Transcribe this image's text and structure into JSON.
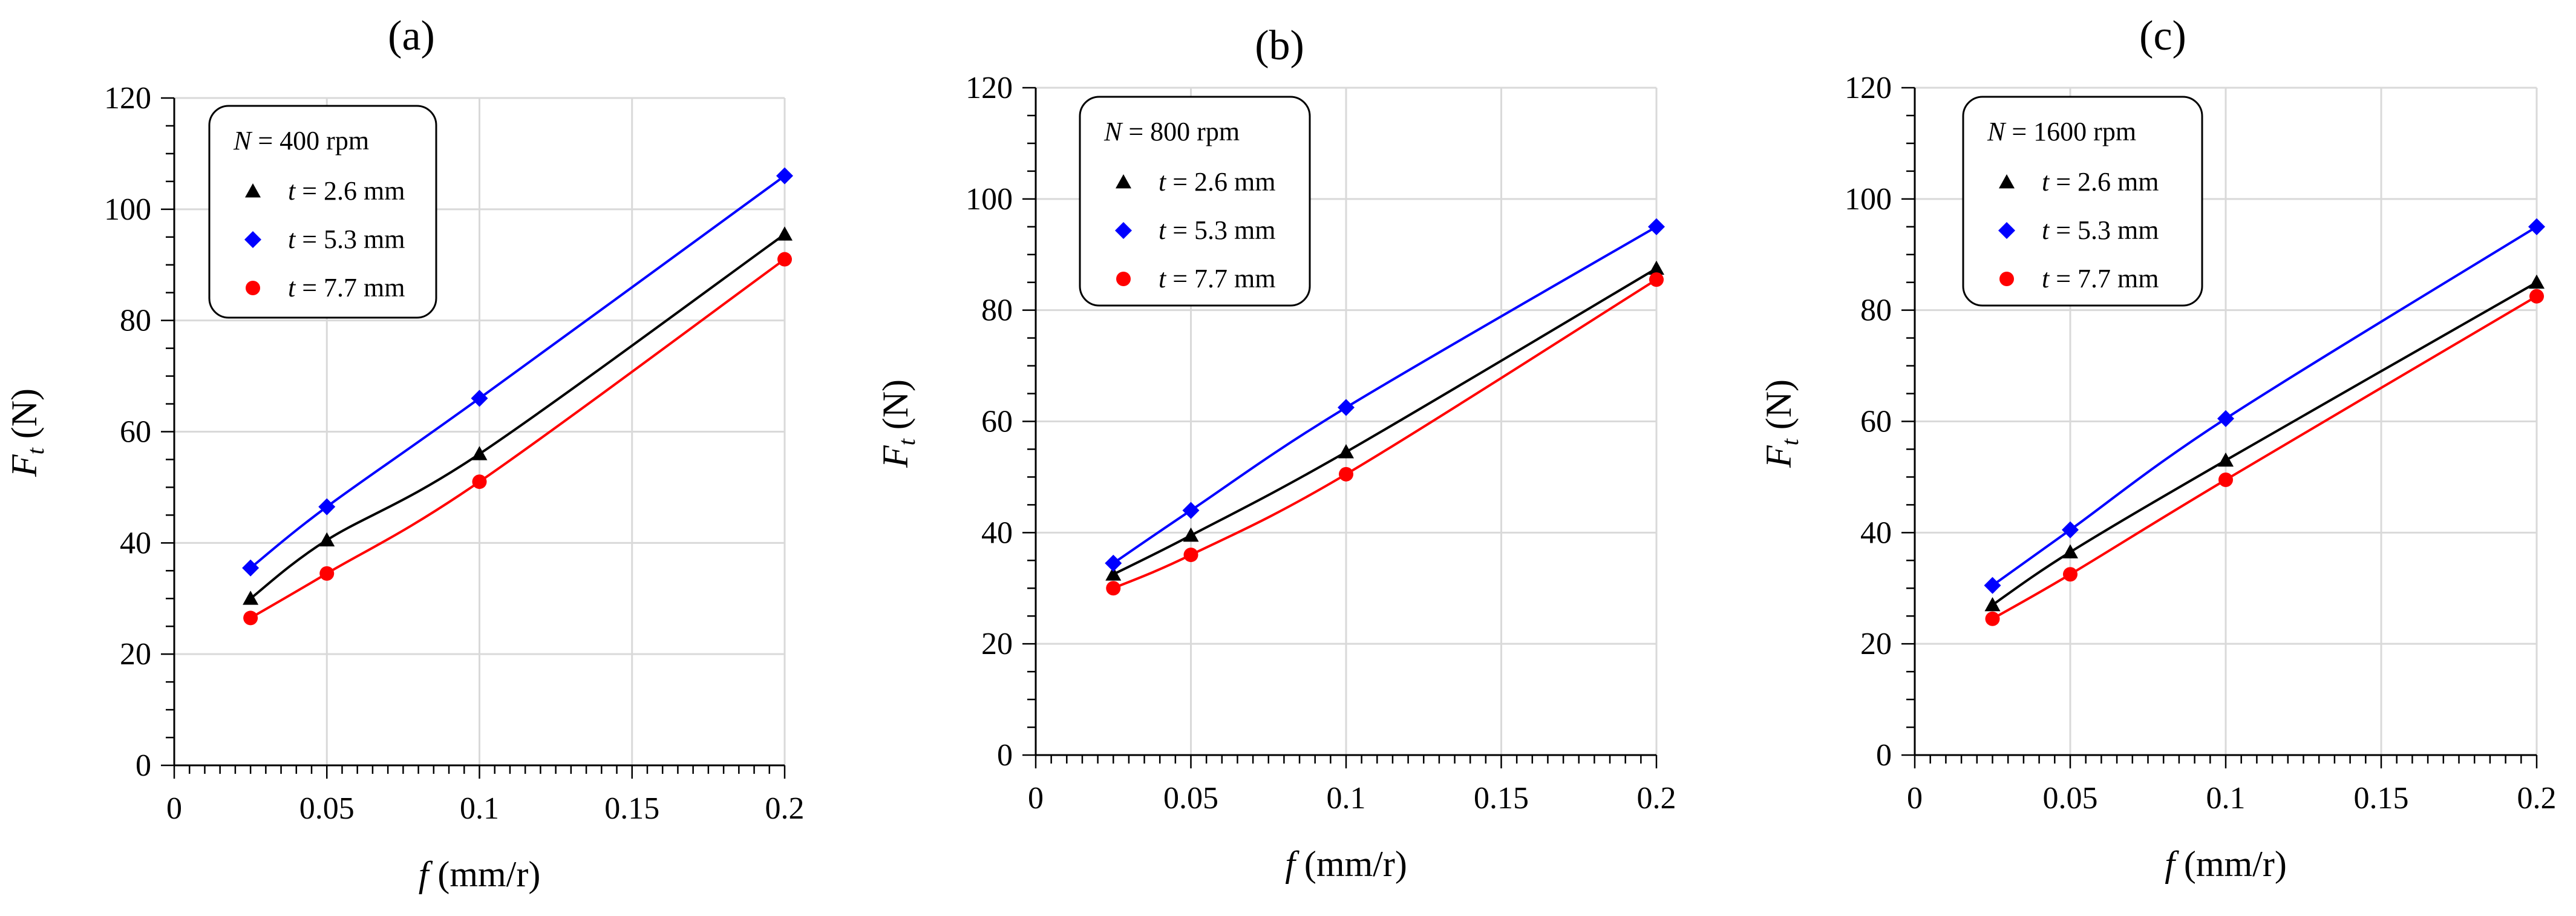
{
  "chart_data": [
    {
      "type": "line",
      "panel_label": "(a)",
      "legend_title": {
        "var": "N",
        "text": " = 400 rpm"
      },
      "x": [
        0.025,
        0.05,
        0.1,
        0.2
      ],
      "xlim": [
        0,
        0.2
      ],
      "ylim": [
        0,
        120
      ],
      "xticks": [
        "0",
        "0.05",
        "0.1",
        "0.15",
        "0.2"
      ],
      "yticks": [
        "0",
        "20",
        "40",
        "60",
        "80",
        "100",
        "120"
      ],
      "xlabel": {
        "var": "f",
        "text": " (mm/r)"
      },
      "ylabel": {
        "var": "F",
        "sub": "t",
        "text": " (N)"
      },
      "series": [
        {
          "var": "t",
          "name": " = 2.6 mm",
          "color": "#000000",
          "marker": "triangle",
          "values": [
            30,
            40.5,
            56,
            95.5
          ]
        },
        {
          "var": "t",
          "name": " = 5.3 mm",
          "color": "#0000ff",
          "marker": "diamond",
          "values": [
            35.5,
            46.5,
            66,
            106
          ]
        },
        {
          "var": "t",
          "name": " = 7.7 mm",
          "color": "#ff0000",
          "marker": "circle",
          "values": [
            26.5,
            34.5,
            51,
            91
          ]
        }
      ]
    },
    {
      "type": "line",
      "panel_label": "(b)",
      "legend_title": {
        "var": "N",
        "text": " = 800 rpm"
      },
      "x": [
        0.025,
        0.05,
        0.1,
        0.2
      ],
      "xlim": [
        0,
        0.2
      ],
      "ylim": [
        0,
        120
      ],
      "xticks": [
        "0",
        "0.05",
        "0.1",
        "0.15",
        "0.2"
      ],
      "yticks": [
        "0",
        "20",
        "40",
        "60",
        "80",
        "100",
        "120"
      ],
      "xlabel": {
        "var": "f",
        "text": " (mm/r)"
      },
      "ylabel": {
        "var": "F",
        "sub": "t",
        "text": " (N)"
      },
      "series": [
        {
          "var": "t",
          "name": " = 2.6 mm",
          "color": "#000000",
          "marker": "triangle",
          "values": [
            32.5,
            39.5,
            54.5,
            87.5
          ]
        },
        {
          "var": "t",
          "name": " = 5.3 mm",
          "color": "#0000ff",
          "marker": "diamond",
          "values": [
            34.5,
            44,
            62.5,
            95
          ]
        },
        {
          "var": "t",
          "name": " = 7.7 mm",
          "color": "#ff0000",
          "marker": "circle",
          "values": [
            30,
            36,
            50.5,
            85.5
          ]
        }
      ]
    },
    {
      "type": "line",
      "panel_label": "(c)",
      "legend_title": {
        "var": "N",
        "text": " = 1600 rpm"
      },
      "x": [
        0.025,
        0.05,
        0.1,
        0.2
      ],
      "xlim": [
        0,
        0.2
      ],
      "ylim": [
        0,
        120
      ],
      "xticks": [
        "0",
        "0.05",
        "0.1",
        "0.15",
        "0.2"
      ],
      "yticks": [
        "0",
        "20",
        "40",
        "60",
        "80",
        "100",
        "120"
      ],
      "xlabel": {
        "var": "f",
        "text": " (mm/r)"
      },
      "ylabel": {
        "var": "F",
        "sub": "t",
        "text": " (N)"
      },
      "series": [
        {
          "var": "t",
          "name": " = 2.6 mm",
          "color": "#000000",
          "marker": "triangle",
          "values": [
            27,
            36.5,
            53,
            85
          ]
        },
        {
          "var": "t",
          "name": " = 5.3 mm",
          "color": "#0000ff",
          "marker": "diamond",
          "values": [
            30.5,
            40.5,
            60.5,
            95
          ]
        },
        {
          "var": "t",
          "name": " = 7.7 mm",
          "color": "#ff0000",
          "marker": "circle",
          "values": [
            24.5,
            32.5,
            49.5,
            82.5
          ]
        }
      ]
    }
  ]
}
